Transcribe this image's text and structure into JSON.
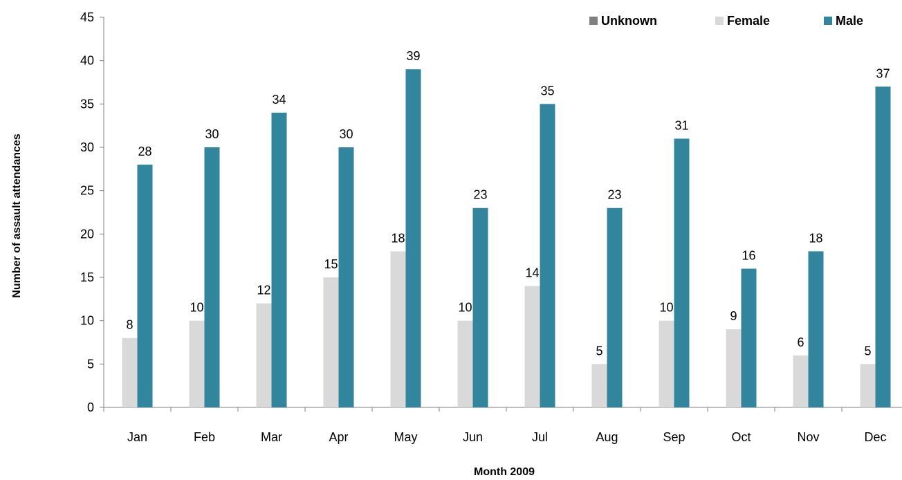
{
  "chart_data": {
    "type": "bar",
    "title": "",
    "xlabel": "Month 2009",
    "ylabel": "Number of assault attendances",
    "ylim": [
      0,
      45
    ],
    "yticks": [
      0,
      5,
      10,
      15,
      20,
      25,
      30,
      35,
      40,
      45
    ],
    "categories": [
      "Jan",
      "Feb",
      "Mar",
      "Apr",
      "May",
      "Jun",
      "Jul",
      "Aug",
      "Sep",
      "Oct",
      "Nov",
      "Dec"
    ],
    "series": [
      {
        "name": "Unknown",
        "color": "#808080",
        "values": [
          0,
          0,
          0,
          0,
          0,
          0,
          0,
          0,
          0,
          0,
          0,
          0
        ]
      },
      {
        "name": "Female",
        "color": "#d9d9d9",
        "values": [
          8,
          10,
          12,
          15,
          18,
          10,
          14,
          5,
          10,
          9,
          6,
          5
        ]
      },
      {
        "name": "Male",
        "color": "#31859c",
        "values": [
          28,
          30,
          34,
          30,
          39,
          23,
          35,
          23,
          31,
          16,
          18,
          37
        ]
      }
    ],
    "data_labels_for": [
      "Female",
      "Male"
    ],
    "grid": false,
    "legend_position": "top-right"
  }
}
